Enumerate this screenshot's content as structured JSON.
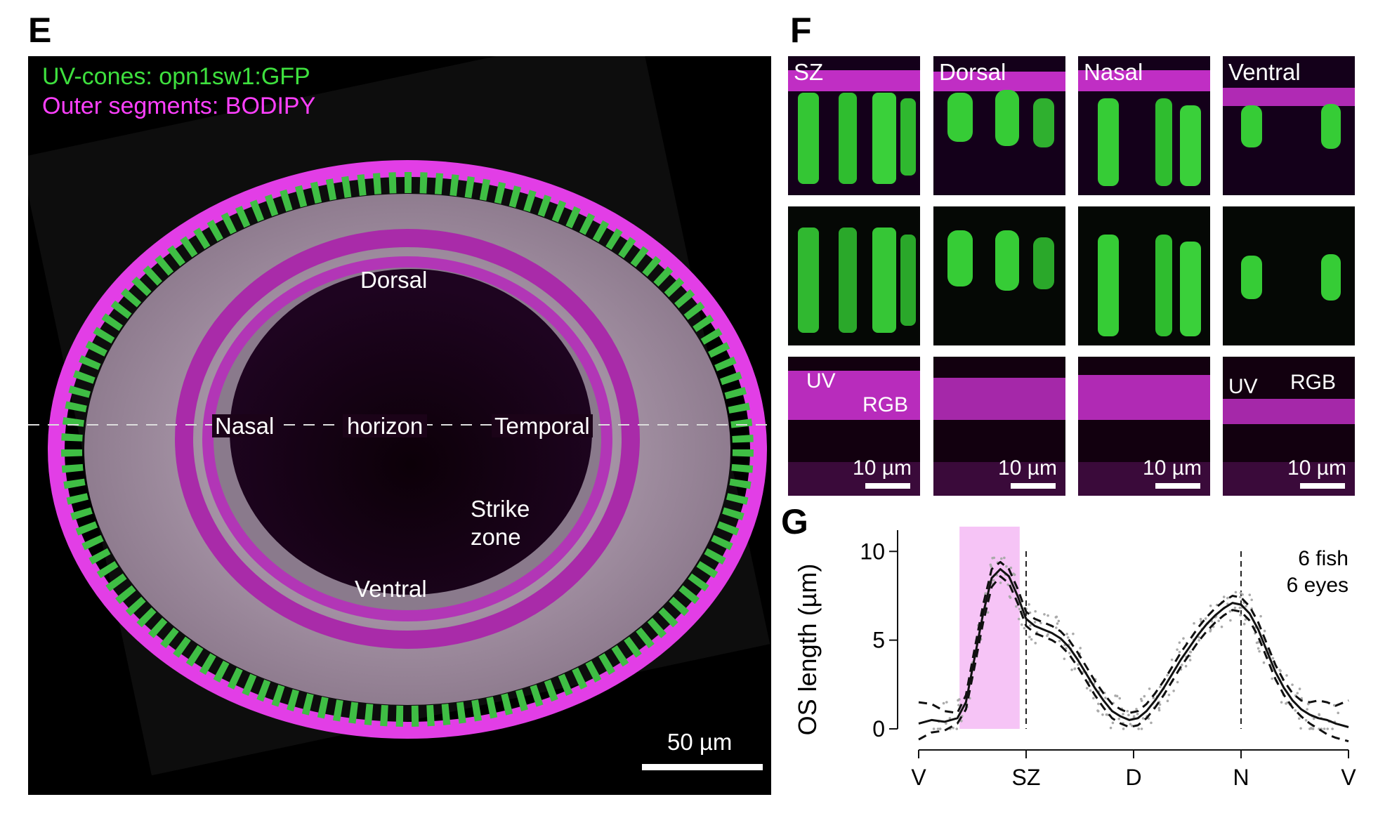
{
  "panel_e": {
    "letter": "E",
    "legend_gfp": "UV-cones: opn1sw1:GFP",
    "legend_bodipy": "Outer segments: BODIPY",
    "label_dorsal": "Dorsal",
    "label_nasal": "Nasal",
    "label_horizon": "horizon",
    "label_temporal": "Temporal",
    "label_strike": "Strike",
    "label_zone": "zone",
    "label_ventral": "Ventral",
    "scale_label": "50 µm",
    "colors": {
      "gfp": "#33dd33",
      "bodipy": "#ff33ff",
      "tissue": "#b8a8b8"
    }
  },
  "panel_f": {
    "letter": "F",
    "tiles": [
      {
        "title": "SZ"
      },
      {
        "title": "Dorsal"
      },
      {
        "title": "Nasal"
      },
      {
        "title": "Ventral"
      }
    ],
    "scale_label": "10 µm",
    "annot_uv": "UV",
    "annot_rgb": "RGB"
  },
  "panel_g": {
    "letter": "G",
    "note_line1": "6 fish",
    "note_line2": "6 eyes"
  },
  "chart_data": {
    "type": "line",
    "ylabel": "OS length (µm)",
    "xlabel": "",
    "x_tick_labels": [
      "V",
      "SZ",
      "D",
      "N",
      "V"
    ],
    "x_tick_positions": [
      0,
      0.25,
      0.5,
      0.75,
      1.0
    ],
    "y_ticks": [
      0,
      5,
      10
    ],
    "ylim": [
      0,
      11
    ],
    "xlim": [
      0,
      1
    ],
    "highlight_region": {
      "label": "SZ",
      "x_range": [
        0.095,
        0.235
      ],
      "color": "#f6c4f6"
    },
    "dashed_vlines": [
      0.25,
      0.75
    ],
    "series": [
      {
        "style": "solid",
        "x": [
          0.0,
          0.03,
          0.06,
          0.09,
          0.11,
          0.13,
          0.15,
          0.17,
          0.19,
          0.21,
          0.23,
          0.25,
          0.27,
          0.29,
          0.31,
          0.33,
          0.35,
          0.37,
          0.39,
          0.41,
          0.43,
          0.45,
          0.47,
          0.49,
          0.51,
          0.53,
          0.55,
          0.57,
          0.59,
          0.61,
          0.63,
          0.65,
          0.67,
          0.69,
          0.71,
          0.73,
          0.75,
          0.77,
          0.79,
          0.81,
          0.83,
          0.85,
          0.87,
          0.89,
          0.91,
          0.93,
          0.95,
          0.97,
          1.0
        ],
        "y": [
          0.3,
          0.5,
          0.4,
          0.6,
          1.5,
          4.0,
          6.5,
          8.5,
          9.0,
          8.6,
          7.5,
          6.2,
          5.8,
          5.6,
          5.4,
          5.1,
          4.6,
          3.9,
          3.1,
          2.3,
          1.6,
          1.0,
          0.7,
          0.5,
          0.6,
          1.0,
          1.6,
          2.3,
          3.1,
          3.9,
          4.6,
          5.3,
          5.9,
          6.4,
          6.8,
          7.1,
          7.0,
          6.5,
          5.6,
          4.4,
          3.2,
          2.3,
          1.6,
          1.1,
          0.8,
          0.6,
          0.5,
          0.3,
          0.1
        ]
      },
      {
        "style": "dashed-upper",
        "x": [
          0.0,
          0.03,
          0.06,
          0.09,
          0.11,
          0.13,
          0.15,
          0.17,
          0.19,
          0.21,
          0.23,
          0.25,
          0.27,
          0.29,
          0.31,
          0.33,
          0.35,
          0.37,
          0.39,
          0.41,
          0.43,
          0.45,
          0.47,
          0.49,
          0.51,
          0.53,
          0.55,
          0.57,
          0.59,
          0.61,
          0.63,
          0.65,
          0.67,
          0.69,
          0.71,
          0.73,
          0.75,
          0.77,
          0.79,
          0.81,
          0.83,
          0.85,
          0.87,
          0.89,
          0.91,
          0.93,
          0.95,
          0.97,
          1.0
        ],
        "y": [
          1.5,
          1.4,
          1.0,
          0.9,
          1.9,
          4.5,
          7.0,
          9.0,
          9.4,
          9.0,
          7.9,
          6.6,
          6.2,
          6.0,
          5.8,
          5.5,
          5.0,
          4.3,
          3.5,
          2.7,
          2.0,
          1.4,
          1.1,
          0.9,
          1.0,
          1.4,
          2.0,
          2.7,
          3.5,
          4.3,
          5.0,
          5.7,
          6.3,
          6.8,
          7.2,
          7.5,
          7.4,
          6.9,
          6.0,
          4.8,
          3.6,
          2.7,
          2.0,
          1.6,
          1.5,
          1.6,
          1.5,
          1.3,
          1.6
        ]
      },
      {
        "style": "dashed-lower",
        "x": [
          0.0,
          0.03,
          0.06,
          0.09,
          0.11,
          0.13,
          0.15,
          0.17,
          0.19,
          0.21,
          0.23,
          0.25,
          0.27,
          0.29,
          0.31,
          0.33,
          0.35,
          0.37,
          0.39,
          0.41,
          0.43,
          0.45,
          0.47,
          0.49,
          0.51,
          0.53,
          0.55,
          0.57,
          0.59,
          0.61,
          0.63,
          0.65,
          0.67,
          0.69,
          0.71,
          0.73,
          0.75,
          0.77,
          0.79,
          0.81,
          0.83,
          0.85,
          0.87,
          0.89,
          0.91,
          0.93,
          0.95,
          0.97,
          1.0
        ],
        "y": [
          -0.6,
          -0.2,
          -0.1,
          0.3,
          1.1,
          3.5,
          6.0,
          8.0,
          8.6,
          8.2,
          7.1,
          5.8,
          5.4,
          5.2,
          5.0,
          4.7,
          4.2,
          3.5,
          2.7,
          1.9,
          1.2,
          0.6,
          0.3,
          0.1,
          0.2,
          0.6,
          1.2,
          1.9,
          2.7,
          3.5,
          4.2,
          4.9,
          5.5,
          6.0,
          6.4,
          6.7,
          6.6,
          6.1,
          5.2,
          4.0,
          2.8,
          1.9,
          1.2,
          0.7,
          0.3,
          0.0,
          -0.3,
          -0.5,
          -0.7
        ]
      }
    ]
  }
}
